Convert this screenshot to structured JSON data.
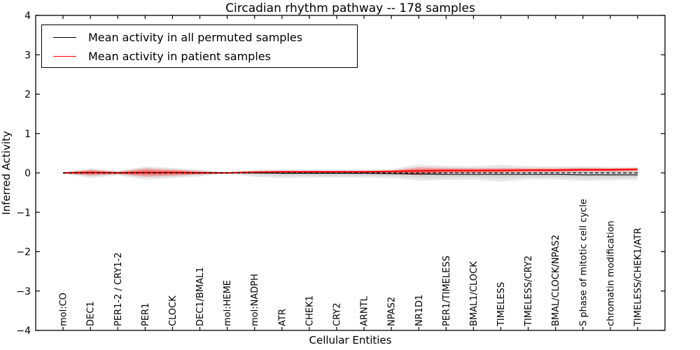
{
  "title": "Circadian rhythm pathway -- 178 samples",
  "axes": {
    "x_label": "Cellular Entities",
    "y_label": "Inferred Activity",
    "y_tick_labels": [
      "4",
      "3",
      "2",
      "1",
      "0",
      "−1",
      "−2",
      "−3",
      "−4"
    ]
  },
  "legend": {
    "items": [
      {
        "label": "Mean activity in all permuted samples",
        "color": "#000000"
      },
      {
        "label": "Mean activity in patient samples",
        "color": "#ff0000"
      }
    ]
  },
  "colors": {
    "permuted_line": "#000000",
    "patient_line": "#ff0000",
    "permuted_band": "#b4b4b4",
    "patient_band": "#ff3232",
    "zero_line": "#000000",
    "frame": "#000000"
  },
  "chart_data": {
    "type": "line",
    "title": "Circadian rhythm pathway -- 178 samples",
    "xlabel": "Cellular Entities",
    "ylabel": "Inferred Activity",
    "ylim": [
      -4,
      4
    ],
    "y_ticks": [
      4,
      3,
      2,
      1,
      0,
      -1,
      -2,
      -3,
      -4
    ],
    "grid": false,
    "legend_position": "upper left",
    "zero_reference_line": "dashed black at y=0",
    "categories": [
      "mol:CO",
      "DEC1",
      "PER1-2 / CRY1-2",
      "PER1",
      "CLOCK",
      "DEC1/BMAL1",
      "mol:HEME",
      "mol:NADPH",
      "ATR",
      "CHEK1",
      "CRY2",
      "ARNTL",
      "NPAS2",
      "NR1D1",
      "PER1/TIMELESS",
      "BMAL1/CLOCK",
      "TIMELESS",
      "TIMELESS/CRY2",
      "BMAL/CLOCK/NPAS2",
      "S phase of mitotic cell cycle",
      "chromatin modification",
      "TIMELESS/CHEK1/ATR"
    ],
    "series": [
      {
        "name": "Mean activity in all permuted samples",
        "style": "solid",
        "color": "#000000",
        "values": [
          0,
          0,
          0,
          0,
          0,
          0,
          0,
          0,
          -0.01,
          -0.01,
          -0.01,
          -0.01,
          -0.02,
          -0.03,
          -0.04,
          -0.04,
          -0.04,
          -0.04,
          -0.04,
          -0.05,
          -0.05,
          -0.05
        ]
      },
      {
        "name": "Mean activity in patient samples",
        "style": "solid",
        "color": "#ff0000",
        "values": [
          0,
          0.01,
          0,
          0.01,
          0.01,
          0,
          0,
          0.02,
          0.03,
          0.03,
          0.03,
          0.03,
          0.04,
          0.05,
          0.06,
          0.06,
          0.06,
          0.07,
          0.07,
          0.08,
          0.08,
          0.09
        ]
      }
    ],
    "bands": [
      {
        "name": "permuted samples range",
        "color": "#b4b4b4",
        "hi": [
          0.02,
          0.12,
          0.05,
          0.16,
          0.13,
          0.08,
          0.02,
          0.08,
          0.09,
          0.09,
          0.09,
          0.09,
          0.1,
          0.21,
          0.18,
          0.17,
          0.2,
          0.17,
          0.16,
          0.17,
          0.15,
          0.15
        ],
        "lo": [
          -0.02,
          -0.13,
          -0.06,
          -0.17,
          -0.13,
          -0.09,
          -0.02,
          -0.1,
          -0.13,
          -0.12,
          -0.12,
          -0.12,
          -0.13,
          -0.19,
          -0.18,
          -0.17,
          -0.22,
          -0.16,
          -0.17,
          -0.2,
          -0.19,
          -0.17
        ]
      },
      {
        "name": "patient samples range",
        "color": "#ff3232",
        "hi": [
          0.01,
          0.08,
          0.03,
          0.12,
          0.09,
          0.05,
          0.01,
          0.04,
          0.05,
          0.05,
          0.05,
          0.05,
          0.06,
          0.15,
          0.13,
          0.12,
          0.13,
          0.12,
          0.12,
          0.13,
          0.12,
          0.13
        ],
        "lo": [
          -0.01,
          -0.07,
          -0.03,
          -0.1,
          -0.08,
          -0.04,
          -0.01,
          -0.02,
          -0.01,
          -0.01,
          -0.01,
          -0.01,
          -0.02,
          -0.06,
          -0.01,
          0.0,
          0.01,
          0.02,
          0.02,
          0.03,
          0.03,
          0.04
        ]
      }
    ]
  }
}
